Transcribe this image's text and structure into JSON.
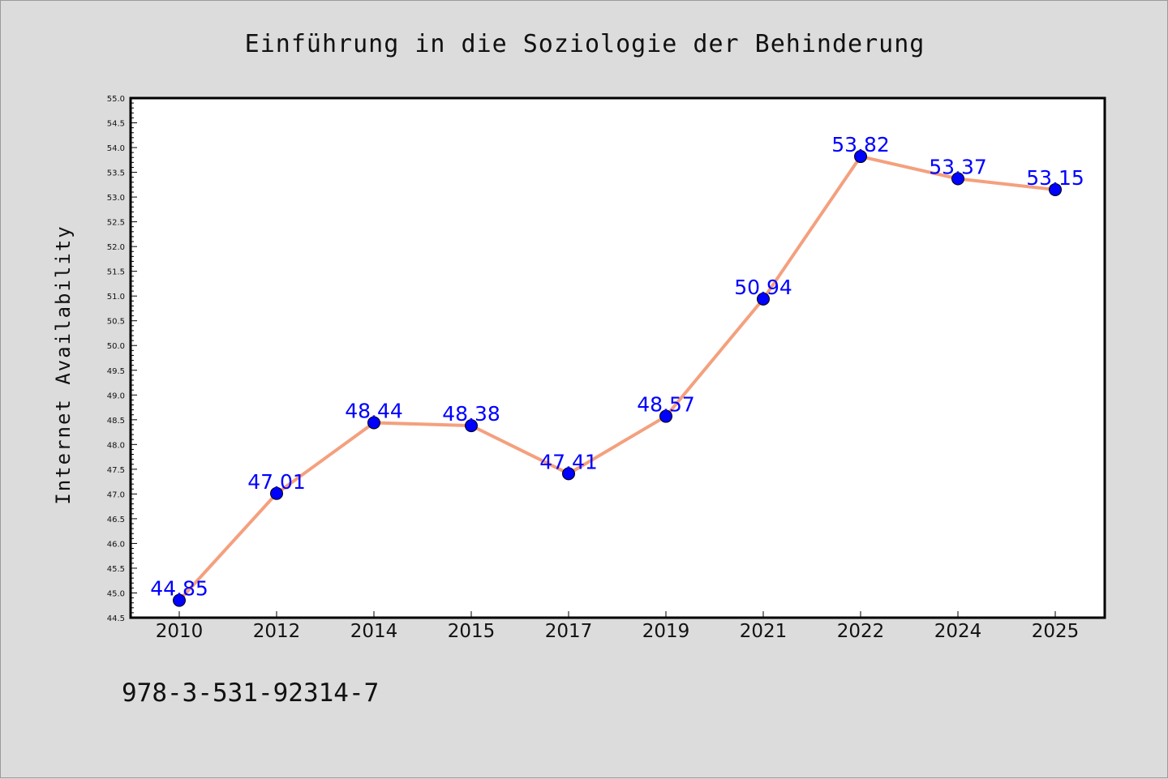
{
  "chart_data": {
    "type": "line",
    "title": "Einführung in die Soziologie der Behinderung",
    "xlabel": "",
    "ylabel": "Internet Availability",
    "categories": [
      "2010",
      "2012",
      "2014",
      "2015",
      "2017",
      "2019",
      "2021",
      "2022",
      "2024",
      "2025"
    ],
    "series": [
      {
        "values": [
          44.85,
          47.01,
          48.44,
          48.38,
          47.41,
          48.57,
          50.94,
          53.82,
          53.37,
          53.15
        ]
      }
    ],
    "data_labels": [
      "44.85",
      "47.01",
      "48.44",
      "48.38",
      "47.41",
      "48.57",
      "50.94",
      "53.82",
      "53.37",
      "53.15"
    ],
    "ylim": [
      44.5,
      55.0
    ],
    "yticks": [
      "44.5",
      "45.0",
      "45.5",
      "46.0",
      "46.5",
      "47.0",
      "47.5",
      "48.0",
      "48.5",
      "49.0",
      "49.5",
      "50.0",
      "50.5",
      "51.0",
      "51.5",
      "52.0",
      "52.5",
      "53.0",
      "53.5",
      "54.0",
      "54.5",
      "55.0"
    ],
    "grid": false,
    "legend": "none",
    "colors": {
      "line": "#f4a07e",
      "marker": "#0000ff",
      "label": "#0000ff",
      "background": "#dcdcdc",
      "plot_background": "#ffffff"
    }
  },
  "footnote": "978-3-531-92314-7"
}
